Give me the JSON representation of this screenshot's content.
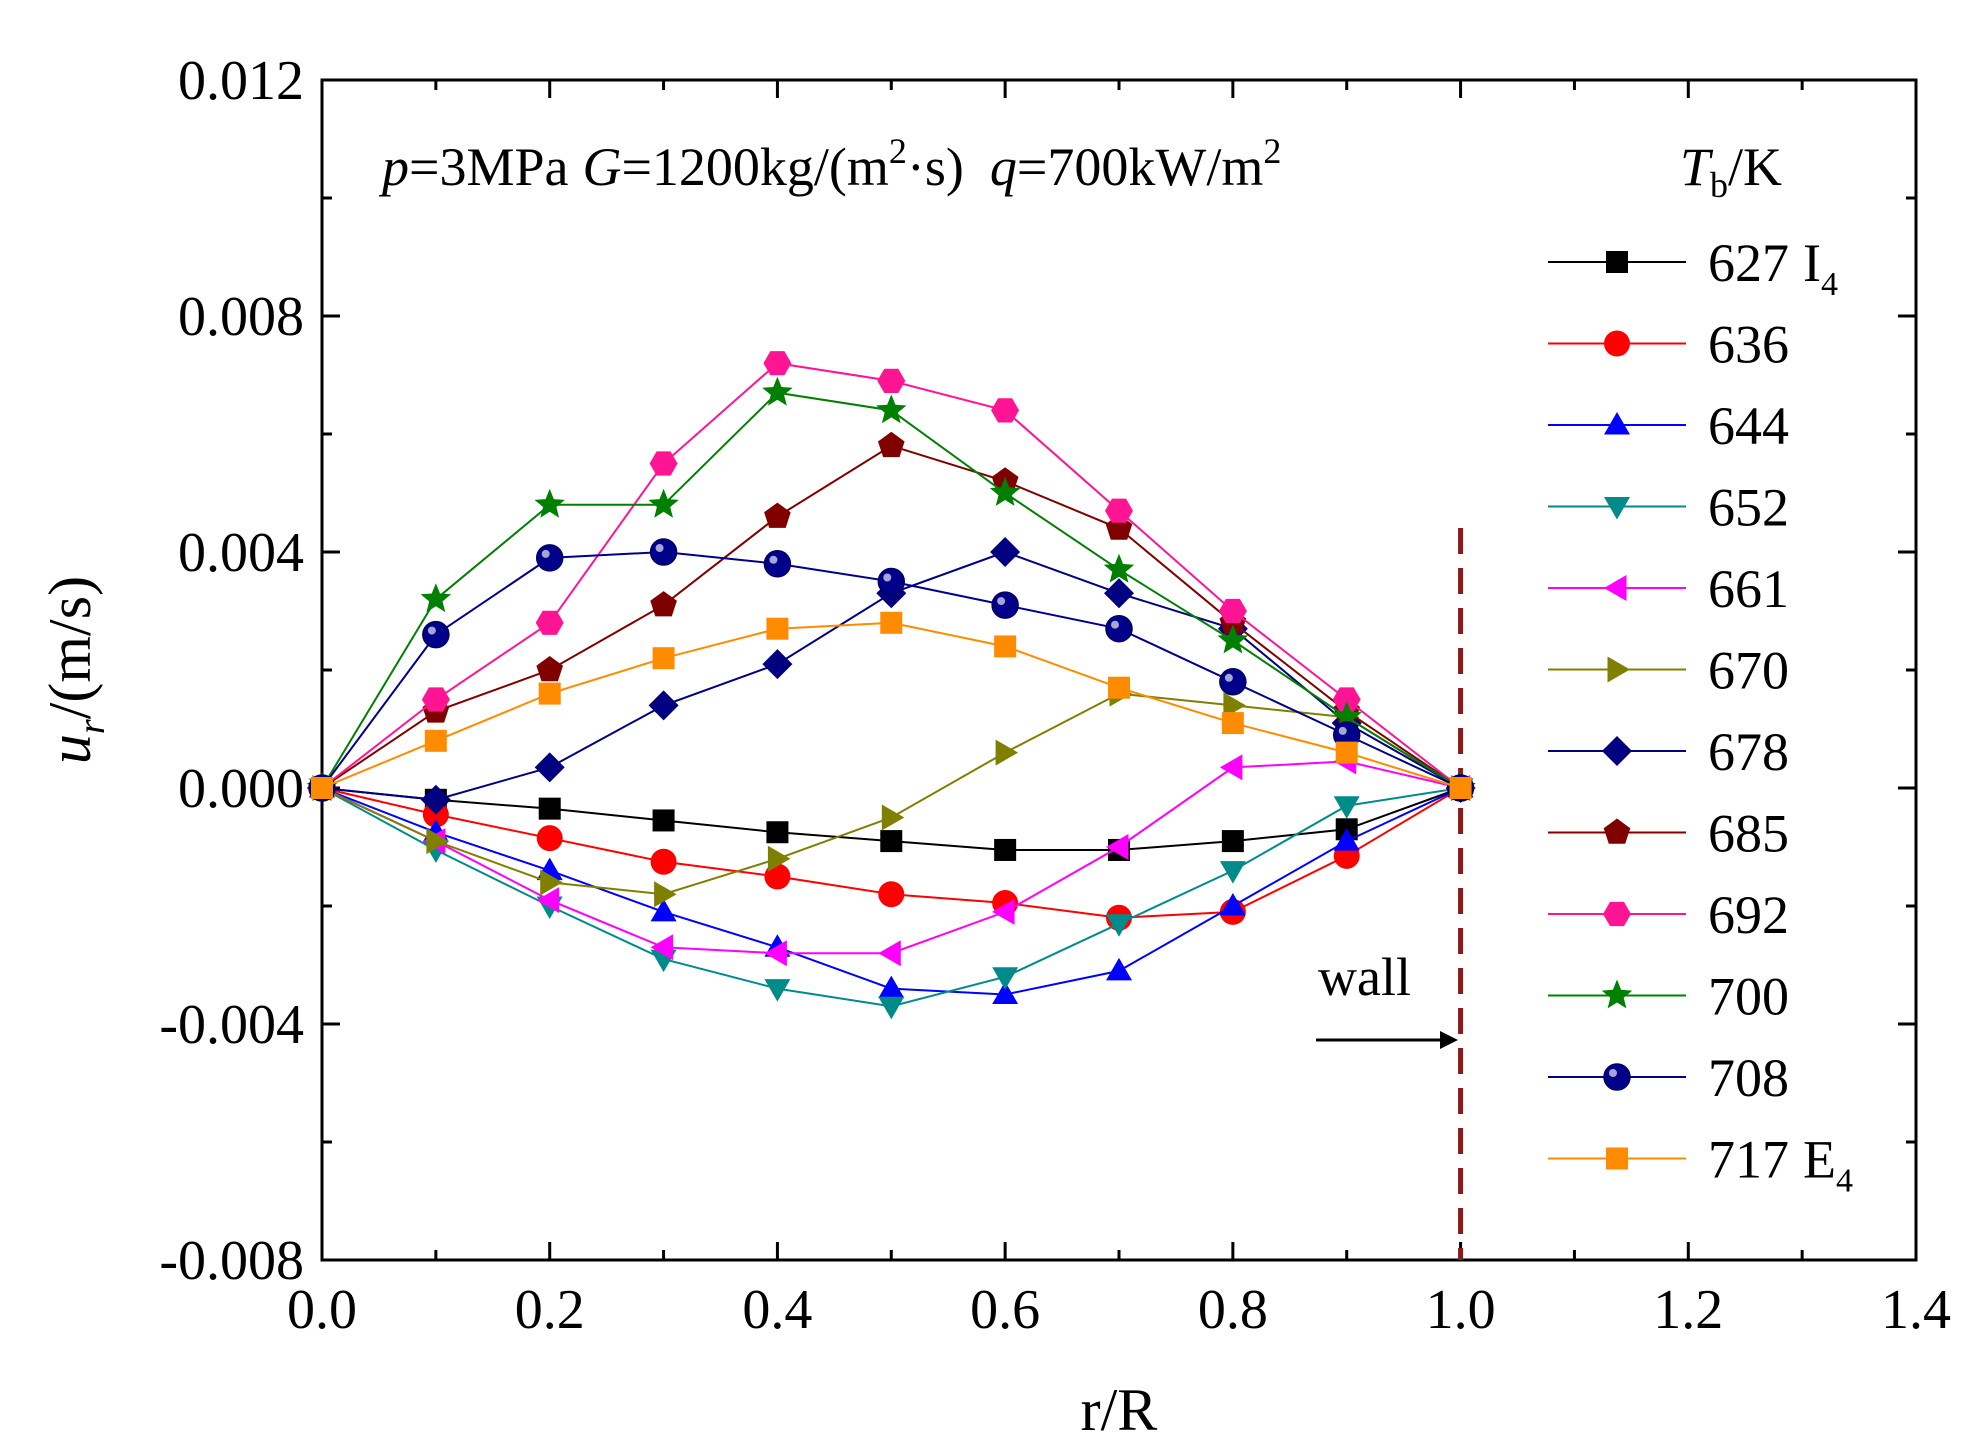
{
  "chart_data": {
    "type": "line",
    "annotation": {
      "p_var": "p",
      "p_val": "=3MPa",
      "G_var": "G",
      "G_val": "=1200kg/(m",
      "G_sup": "2",
      "G_tail": "·s)",
      "q_var": "q",
      "q_val": "=700kW/m",
      "q_sup": "2"
    },
    "legend_title": {
      "var": "T",
      "sub": "b",
      "unit": "/K"
    },
    "xlabel": "r/R",
    "ylabel": {
      "var": "u",
      "sub": "r",
      "unit": "/(m/s)"
    },
    "xlim": [
      0,
      1.4
    ],
    "ylim": [
      -0.008,
      0.012
    ],
    "x_ticks": [
      "0.0",
      "0.2",
      "0.4",
      "0.6",
      "0.8",
      "1.0",
      "1.2",
      "1.4"
    ],
    "y_ticks": [
      "-0.008",
      "-0.004",
      "0.000",
      "0.004",
      "0.008",
      "0.012"
    ],
    "wall_label": "wall",
    "wall_x": 1.0,
    "x": [
      0,
      0.1,
      0.2,
      0.3,
      0.4,
      0.5,
      0.6,
      0.7,
      0.8,
      0.9,
      1.0
    ],
    "series": [
      {
        "name": "627",
        "suffix": "I",
        "suffix_sub": "4",
        "color": "#000000",
        "marker": "square",
        "values": [
          0,
          -0.0002,
          -0.00035,
          -0.00055,
          -0.00075,
          -0.0009,
          -0.00105,
          -0.00105,
          -0.0009,
          -0.0007,
          0
        ]
      },
      {
        "name": "636",
        "color": "#ff0000",
        "marker": "circle",
        "values": [
          0,
          -0.00045,
          -0.00085,
          -0.00125,
          -0.0015,
          -0.0018,
          -0.00195,
          -0.0022,
          -0.0021,
          -0.00115,
          0
        ]
      },
      {
        "name": "644",
        "color": "#0000ff",
        "marker": "triangle-up",
        "values": [
          0,
          -0.00075,
          -0.0014,
          -0.0021,
          -0.0027,
          -0.0034,
          -0.0035,
          -0.0031,
          -0.002,
          -0.0009,
          0
        ]
      },
      {
        "name": "652",
        "color": "#008b8b",
        "marker": "triangle-down",
        "values": [
          0,
          -0.00105,
          -0.002,
          -0.0029,
          -0.0034,
          -0.0037,
          -0.0032,
          -0.0023,
          -0.0014,
          -0.0003,
          0
        ]
      },
      {
        "name": "661",
        "color": "#ff00ff",
        "marker": "triangle-left",
        "values": [
          0,
          -0.0009,
          -0.0019,
          -0.0027,
          -0.0028,
          -0.0028,
          -0.0021,
          -0.001,
          0.00035,
          0.00045,
          0
        ]
      },
      {
        "name": "670",
        "color": "#808000",
        "marker": "triangle-right",
        "values": [
          0,
          -0.0009,
          -0.0016,
          -0.0018,
          -0.0012,
          -0.0005,
          0.0006,
          0.0016,
          0.0014,
          0.0012,
          0
        ]
      },
      {
        "name": "678",
        "color": "#000080",
        "marker": "diamond",
        "values": [
          0,
          -0.0002,
          0.00035,
          0.0014,
          0.0021,
          0.0033,
          0.004,
          0.0033,
          0.0027,
          0.0011,
          0
        ]
      },
      {
        "name": "685",
        "color": "#800000",
        "marker": "pentagon",
        "values": [
          0,
          0.0013,
          0.002,
          0.0031,
          0.0046,
          0.0058,
          0.0052,
          0.0044,
          0.0028,
          0.0013,
          0
        ]
      },
      {
        "name": "692",
        "color": "#ff1493",
        "marker": "hexagon",
        "values": [
          0,
          0.0015,
          0.0028,
          0.0055,
          0.0072,
          0.0069,
          0.0064,
          0.0047,
          0.003,
          0.0015,
          0
        ]
      },
      {
        "name": "700",
        "color": "#008000",
        "marker": "star",
        "values": [
          0,
          0.0032,
          0.0048,
          0.0048,
          0.0067,
          0.0064,
          0.005,
          0.0037,
          0.0025,
          0.0012,
          0
        ]
      },
      {
        "name": "708",
        "color": "#00008b",
        "marker": "ball",
        "values": [
          0,
          0.0026,
          0.0039,
          0.004,
          0.0038,
          0.0035,
          0.0031,
          0.0027,
          0.0018,
          0.0009,
          0
        ]
      },
      {
        "name": "717",
        "suffix": "E",
        "suffix_sub": "4",
        "color": "#ff8c00",
        "marker": "square",
        "values": [
          0,
          0.0008,
          0.0016,
          0.0022,
          0.0027,
          0.0028,
          0.0024,
          0.0017,
          0.0011,
          0.0006,
          0
        ]
      }
    ]
  }
}
